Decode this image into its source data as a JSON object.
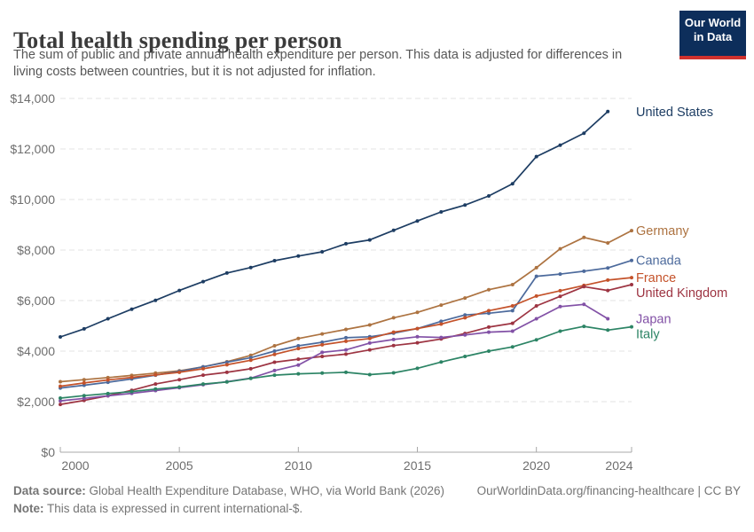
{
  "header": {
    "title": "Total health spending per person",
    "subtitle": "The sum of public and private annual health expenditure per person. This data is adjusted for differences in living costs between countries, but it is not adjusted for inflation.",
    "logo": {
      "line1": "Our World",
      "line2": "in Data",
      "bg_color": "#0d2e5b",
      "stripe_color": "#d0312d"
    }
  },
  "chart_data": {
    "type": "line",
    "title": "Total health spending per person",
    "x_label": "",
    "y_label": "",
    "xlim": [
      2000,
      2024
    ],
    "ylim": [
      0,
      14000
    ],
    "grid": "horizontal-dashed",
    "legend_position": "right-of-line-labels",
    "x": [
      2000,
      2001,
      2002,
      2003,
      2004,
      2005,
      2006,
      2007,
      2008,
      2009,
      2010,
      2011,
      2012,
      2013,
      2014,
      2015,
      2016,
      2017,
      2018,
      2019,
      2020,
      2021,
      2022,
      2023,
      2024
    ],
    "x_ticks": [
      2000,
      2005,
      2010,
      2015,
      2020,
      2024
    ],
    "x_tick_labels": [
      "2000",
      "2005",
      "2010",
      "2015",
      "2020",
      "2024"
    ],
    "y_ticks": [
      0,
      2000,
      4000,
      6000,
      8000,
      10000,
      12000,
      14000
    ],
    "y_tick_labels": [
      "$0",
      "$2,000",
      "$4,000",
      "$6,000",
      "$8,000",
      "$10,000",
      "$12,000",
      "$14,000"
    ],
    "series": [
      {
        "name": "United States",
        "color": "#1d3d63",
        "values": [
          4560,
          4880,
          5280,
          5660,
          6010,
          6400,
          6750,
          7090,
          7310,
          7580,
          7760,
          7930,
          8250,
          8400,
          8780,
          9150,
          9510,
          9780,
          10140,
          10620,
          11700,
          12150,
          12620,
          13480,
          null
        ]
      },
      {
        "name": "Germany",
        "color": "#ad7341",
        "values": [
          2790,
          2870,
          2950,
          3040,
          3130,
          3220,
          3380,
          3580,
          3830,
          4210,
          4500,
          4680,
          4860,
          5035,
          5320,
          5535,
          5820,
          6100,
          6430,
          6630,
          7300,
          8050,
          8500,
          8280,
          8770
        ]
      },
      {
        "name": "Canada",
        "color": "#4c6a9c",
        "values": [
          2540,
          2650,
          2770,
          2900,
          3050,
          3200,
          3380,
          3560,
          3740,
          4000,
          4210,
          4350,
          4530,
          4570,
          4710,
          4890,
          5180,
          5430,
          5500,
          5600,
          6960,
          7050,
          7160,
          7290,
          7590
        ]
      },
      {
        "name": "France",
        "color": "#c4522a",
        "values": [
          2610,
          2740,
          2860,
          2960,
          3060,
          3160,
          3300,
          3460,
          3640,
          3870,
          4100,
          4250,
          4390,
          4500,
          4750,
          4890,
          5070,
          5320,
          5600,
          5790,
          6180,
          6390,
          6600,
          6810,
          6910
        ]
      },
      {
        "name": "United Kingdom",
        "color": "#9d3442",
        "values": [
          1890,
          2050,
          2230,
          2450,
          2700,
          2870,
          3050,
          3160,
          3300,
          3560,
          3680,
          3790,
          3880,
          4050,
          4220,
          4330,
          4480,
          4700,
          4950,
          5100,
          5790,
          6170,
          6550,
          6400,
          6630
        ]
      },
      {
        "name": "Japan",
        "color": "#8251a6",
        "values": [
          2030,
          2130,
          2230,
          2330,
          2440,
          2550,
          2670,
          2790,
          2930,
          3230,
          3450,
          3950,
          4050,
          4320,
          4460,
          4570,
          4540,
          4640,
          4750,
          4790,
          5280,
          5760,
          5850,
          5280,
          null
        ]
      },
      {
        "name": "Italy",
        "color": "#2c8465",
        "values": [
          2140,
          2240,
          2320,
          2400,
          2500,
          2580,
          2700,
          2780,
          2920,
          3050,
          3100,
          3130,
          3160,
          3070,
          3140,
          3320,
          3570,
          3790,
          4000,
          4170,
          4450,
          4790,
          4980,
          4830,
          4960
        ]
      }
    ]
  },
  "footer": {
    "source_label": "Data source:",
    "source_text": " Global Health Expenditure Database, WHO, via World Bank (2026)",
    "note_label": "Note:",
    "note_text": " This data is expressed in current international-$.",
    "link_text": "OurWorldinData.org/financing-healthcare | CC BY"
  }
}
